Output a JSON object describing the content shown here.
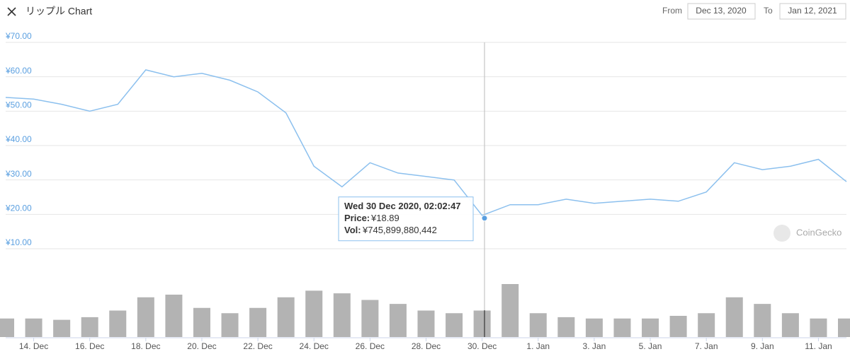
{
  "chart_data": {
    "type": "line",
    "title": "リップル Chart",
    "from_caption": "From",
    "from": "Dec 13, 2020",
    "to_caption": "To",
    "to": "Jan 12, 2021",
    "watermark": "CoinGecko",
    "x": [
      "2020-12-13",
      "2020-12-14",
      "2020-12-15",
      "2020-12-16",
      "2020-12-17",
      "2020-12-18",
      "2020-12-19",
      "2020-12-20",
      "2020-12-21",
      "2020-12-22",
      "2020-12-23",
      "2020-12-24",
      "2020-12-25",
      "2020-12-26",
      "2020-12-27",
      "2020-12-28",
      "2020-12-29",
      "2020-12-30",
      "2020-12-31",
      "2021-01-01",
      "2021-01-02",
      "2021-01-03",
      "2021-01-04",
      "2021-01-05",
      "2021-01-06",
      "2021-01-07",
      "2021-01-08",
      "2021-01-09",
      "2021-01-10",
      "2021-01-11",
      "2021-01-12"
    ],
    "values": [
      54,
      53.5,
      52,
      50,
      52,
      62,
      60,
      61,
      59,
      55.6,
      49.5,
      34,
      28,
      35,
      32,
      31,
      30,
      19.7,
      22.8,
      22.8,
      24.4,
      23.2,
      23.8,
      24.4,
      23.8,
      26.5,
      35,
      33,
      34,
      36,
      29.5
    ],
    "color": "#8cc0ee",
    "volumes": [
      518000000000,
      518000000000,
      481000000000,
      555000000000,
      740000000000,
      1110000000000,
      1184000000000,
      814000000000,
      666000000000,
      814000000000,
      1110000000000,
      1295000000000,
      1221000000000,
      1036000000000,
      925000000000,
      740000000000,
      666000000000,
      740000000000,
      1480000000000,
      666000000000,
      555000000000,
      518000000000,
      518000000000,
      518000000000,
      592000000000,
      666000000000,
      1110000000000,
      925000000000,
      666000000000,
      518000000000,
      518000000000
    ],
    "volume_color": "#9a9a9a",
    "ylim": [
      10,
      70
    ],
    "yticks": [
      {
        "value": 10,
        "label": "¥10.00"
      },
      {
        "value": 20,
        "label": "¥20.00"
      },
      {
        "value": 30,
        "label": "¥30.00"
      },
      {
        "value": 40,
        "label": "¥40.00"
      },
      {
        "value": 50,
        "label": "¥50.00"
      },
      {
        "value": 60,
        "label": "¥60.00"
      },
      {
        "value": 70,
        "label": "¥70.00"
      }
    ],
    "xlim": [
      "2020-12-13",
      "2021-01-12"
    ],
    "xticks": [
      {
        "value": "2020-12-14",
        "label": "14. Dec"
      },
      {
        "value": "2020-12-16",
        "label": "16. Dec"
      },
      {
        "value": "2020-12-18",
        "label": "18. Dec"
      },
      {
        "value": "2020-12-20",
        "label": "20. Dec"
      },
      {
        "value": "2020-12-22",
        "label": "22. Dec"
      },
      {
        "value": "2020-12-24",
        "label": "24. Dec"
      },
      {
        "value": "2020-12-26",
        "label": "26. Dec"
      },
      {
        "value": "2020-12-28",
        "label": "28. Dec"
      },
      {
        "value": "2020-12-30",
        "label": "30. Dec"
      },
      {
        "value": "2021-01-01",
        "label": "1. Jan"
      },
      {
        "value": "2021-01-03",
        "label": "3. Jan"
      },
      {
        "value": "2021-01-05",
        "label": "5. Jan"
      },
      {
        "value": "2021-01-07",
        "label": "7. Jan"
      },
      {
        "value": "2021-01-09",
        "label": "9. Jan"
      },
      {
        "value": "2021-01-11",
        "label": "11. Jan"
      }
    ],
    "grid": true,
    "tooltip": {
      "x": "2020-12-30T02:02:47",
      "title": "Wed 30 Dec 2020, 02:02:47",
      "price_caption": "Price:",
      "price": 18.89,
      "price_label": "¥18.89",
      "volume_caption": "Vol:",
      "volume": 745899880442,
      "volume_label": "¥745,899,880,442"
    }
  }
}
